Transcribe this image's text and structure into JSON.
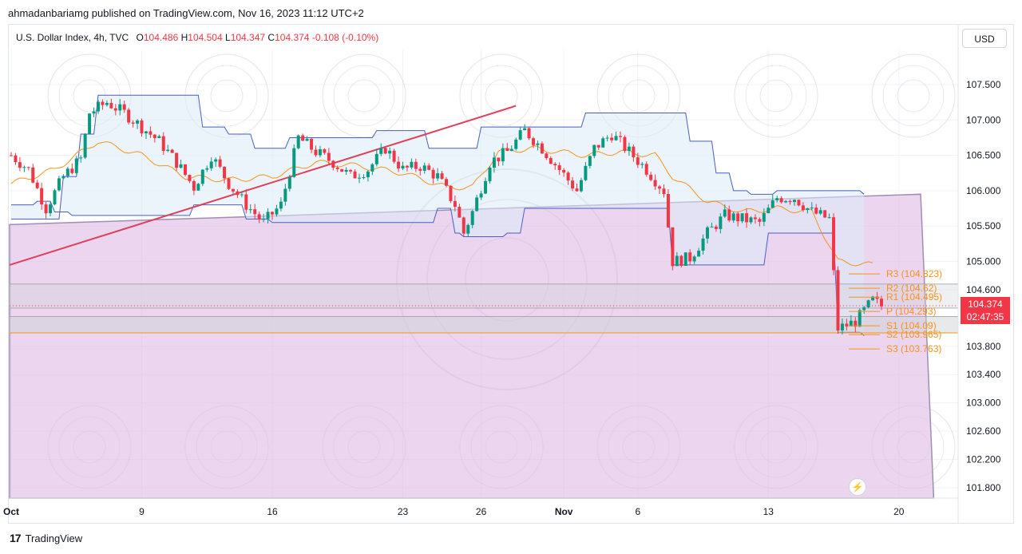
{
  "publisher_line": "ahmadanbariamg published on TradingView.com, Nov 16, 2023 11:12 UTC+2",
  "legend": {
    "symbol": "U.S. Dollar Index, 4h, TVC",
    "open_label": "O",
    "open": "104.486",
    "high_label": "H",
    "high": "104.504",
    "low_label": "L",
    "low": "104.347",
    "close_label": "C",
    "close": "104.374",
    "change": "-0.108 (-0.10%)"
  },
  "currency_button": "USD",
  "price_tag": {
    "price": "104.374",
    "countdown": "02:47:35"
  },
  "footer": {
    "logo": "17",
    "brand": "TradingView"
  },
  "colors": {
    "up": "#089981",
    "down": "#f23645",
    "channel_fill": "#dcebf7",
    "channel_line": "#4a5fc1",
    "mid_line": "#f7931a",
    "purple_zone": "#e1bee7",
    "trendline": "#e0405a"
  },
  "chart_data": {
    "type": "candlestick",
    "symbol": "U.S. Dollar Index",
    "interval": "4h",
    "y_ticks": [
      107.5,
      107.0,
      106.5,
      106.0,
      105.5,
      105.0,
      104.6,
      104.2,
      103.8,
      103.4,
      103.0,
      102.6,
      102.2,
      101.8
    ],
    "y_tick_labels": [
      "107.500",
      "107.000",
      "106.500",
      "106.000",
      "105.500",
      "105.000",
      "104.600",
      "104.200",
      "103.800",
      "103.400",
      "103.000",
      "102.600",
      "102.200",
      "101.800"
    ],
    "ylim": [
      101.65,
      108.0
    ],
    "x_labels": [
      {
        "label": "Oct",
        "bar": 0
      },
      {
        "label": "9",
        "bar": 30
      },
      {
        "label": "16",
        "bar": 60
      },
      {
        "label": "23",
        "bar": 90
      },
      {
        "label": "26",
        "bar": 108
      },
      {
        "label": "Nov",
        "bar": 127
      },
      {
        "label": "6",
        "bar": 144
      },
      {
        "label": "13",
        "bar": 174
      },
      {
        "label": "20",
        "bar": 204
      }
    ],
    "pivots": [
      {
        "label": "R3 (104.823)",
        "value": 104.823
      },
      {
        "label": "R2 (104.62)",
        "value": 104.62
      },
      {
        "label": "R1 (104.495)",
        "value": 104.495
      },
      {
        "label": "P (104.293)",
        "value": 104.293
      },
      {
        "label": "S1 (104.09)",
        "value": 104.09
      },
      {
        "label": "S2 (103.965)",
        "value": 103.965
      },
      {
        "label": "S3 (103.763)",
        "value": 103.763
      }
    ],
    "close_path": [
      [
        0,
        106.5
      ],
      [
        4,
        106.3
      ],
      [
        8,
        105.75
      ],
      [
        12,
        106.2
      ],
      [
        16,
        106.45
      ],
      [
        18,
        107.1
      ],
      [
        22,
        107.25
      ],
      [
        26,
        107.1
      ],
      [
        30,
        106.9
      ],
      [
        34,
        106.7
      ],
      [
        38,
        106.4
      ],
      [
        42,
        106.05
      ],
      [
        46,
        106.5
      ],
      [
        50,
        106.1
      ],
      [
        54,
        105.8
      ],
      [
        58,
        105.55
      ],
      [
        62,
        105.8
      ],
      [
        66,
        106.75
      ],
      [
        70,
        106.55
      ],
      [
        74,
        106.4
      ],
      [
        78,
        106.2
      ],
      [
        82,
        106.3
      ],
      [
        86,
        106.6
      ],
      [
        90,
        106.3
      ],
      [
        94,
        106.35
      ],
      [
        98,
        106.2
      ],
      [
        102,
        105.8
      ],
      [
        104,
        105.4
      ],
      [
        106,
        105.7
      ],
      [
        110,
        106.4
      ],
      [
        114,
        106.55
      ],
      [
        118,
        106.85
      ],
      [
        122,
        106.6
      ],
      [
        126,
        106.3
      ],
      [
        130,
        106.0
      ],
      [
        134,
        106.6
      ],
      [
        138,
        106.8
      ],
      [
        142,
        106.55
      ],
      [
        146,
        106.3
      ],
      [
        150,
        106.0
      ],
      [
        152,
        105.0
      ],
      [
        156,
        105.05
      ],
      [
        160,
        105.4
      ],
      [
        164,
        105.65
      ],
      [
        168,
        105.6
      ],
      [
        172,
        105.55
      ],
      [
        176,
        105.9
      ],
      [
        180,
        105.9
      ],
      [
        184,
        105.7
      ],
      [
        188,
        105.6
      ],
      [
        190,
        104.05
      ],
      [
        194,
        104.15
      ],
      [
        198,
        104.45
      ],
      [
        200,
        104.37
      ]
    ],
    "upper_band": [
      [
        0,
        105.6
      ],
      [
        12,
        106.2
      ],
      [
        16,
        106.8
      ],
      [
        20,
        107.35
      ],
      [
        36,
        107.35
      ],
      [
        44,
        106.9
      ],
      [
        50,
        106.8
      ],
      [
        56,
        106.6
      ],
      [
        64,
        106.75
      ],
      [
        84,
        106.85
      ],
      [
        96,
        106.6
      ],
      [
        104,
        106.6
      ],
      [
        108,
        106.9
      ],
      [
        126,
        106.9
      ],
      [
        132,
        107.1
      ],
      [
        150,
        107.1
      ],
      [
        156,
        106.7
      ],
      [
        162,
        106.25
      ],
      [
        166,
        106.0
      ],
      [
        170,
        105.95
      ],
      [
        176,
        106.0
      ],
      [
        186,
        106.0
      ],
      [
        196,
        105.95
      ]
    ],
    "lower_band": [
      [
        0,
        105.8
      ],
      [
        6,
        105.85
      ],
      [
        10,
        105.7
      ],
      [
        14,
        105.65
      ],
      [
        28,
        105.65
      ],
      [
        42,
        105.8
      ],
      [
        54,
        105.6
      ],
      [
        60,
        105.55
      ],
      [
        84,
        105.55
      ],
      [
        98,
        105.75
      ],
      [
        102,
        105.4
      ],
      [
        104,
        105.35
      ],
      [
        114,
        105.4
      ],
      [
        118,
        105.75
      ],
      [
        126,
        105.75
      ],
      [
        140,
        105.75
      ],
      [
        148,
        105.75
      ],
      [
        152,
        104.95
      ],
      [
        168,
        104.95
      ],
      [
        174,
        105.4
      ],
      [
        178,
        105.4
      ],
      [
        186,
        105.4
      ],
      [
        190,
        104.0
      ],
      [
        196,
        103.95
      ]
    ],
    "mid_band": [
      [
        0,
        106.1
      ],
      [
        10,
        106.3
      ],
      [
        20,
        106.7
      ],
      [
        30,
        106.5
      ],
      [
        40,
        106.2
      ],
      [
        50,
        106.15
      ],
      [
        60,
        106.2
      ],
      [
        70,
        106.4
      ],
      [
        80,
        106.35
      ],
      [
        90,
        106.25
      ],
      [
        100,
        106.05
      ],
      [
        106,
        106.05
      ],
      [
        112,
        106.55
      ],
      [
        120,
        106.6
      ],
      [
        126,
        106.55
      ],
      [
        132,
        106.5
      ],
      [
        140,
        106.55
      ],
      [
        148,
        106.5
      ],
      [
        152,
        106.2
      ],
      [
        160,
        105.85
      ],
      [
        168,
        105.7
      ],
      [
        176,
        105.75
      ],
      [
        184,
        105.7
      ],
      [
        190,
        105.0
      ],
      [
        198,
        104.95
      ]
    ],
    "purple_zone": {
      "top_left": [
        0,
        105.52
      ],
      "top_right": [
        209,
        105.95
      ],
      "bottom_right": [
        209,
        101.65
      ],
      "bottom_right_inner": [
        212,
        101.65
      ]
    },
    "trendline": {
      "from": [
        0,
        104.95
      ],
      "to": [
        116,
        107.2
      ]
    },
    "pivot_band": {
      "upper": 104.68,
      "upper2": 104.34,
      "lower": 104.22,
      "lower2": 103.99
    }
  }
}
